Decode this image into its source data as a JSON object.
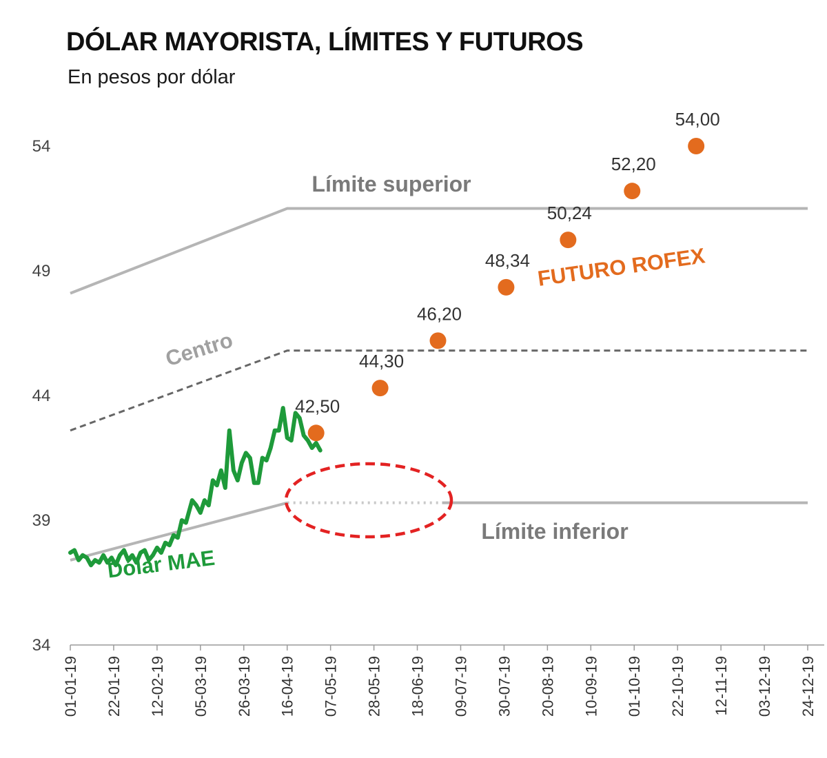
{
  "title": "DÓLAR MAYORISTA, LÍMITES Y FUTUROS",
  "subtitle": "En pesos por dólar",
  "colors": {
    "dolar_mae": "#1e9a3a",
    "futuro_rofex": "#e36b1e",
    "limits": "#b5b5b5",
    "centro": "#666666",
    "highlight_ellipse": "#e32222",
    "axis": "#9a9a9a"
  },
  "chart_data": {
    "type": "line",
    "title": "DÓLAR MAYORISTA, LÍMITES Y FUTUROS",
    "subtitle": "En pesos por dólar",
    "ylim": [
      34,
      54
    ],
    "yticks": [
      34,
      39,
      44,
      49,
      54
    ],
    "xlim": [
      "2019-01-01",
      "2019-12-24"
    ],
    "xticks": [
      "01-01-19",
      "22-01-19",
      "12-02-19",
      "05-03-19",
      "26-03-19",
      "16-04-19",
      "07-05-19",
      "28-05-19",
      "18-06-19",
      "09-07-19",
      "30-07-19",
      "20-08-19",
      "10-09-19",
      "01-10-19",
      "22-10-19",
      "12-11-19",
      "03-12-19",
      "24-12-19"
    ],
    "grid": false,
    "series": [
      {
        "name": "Límite superior",
        "style": "solid",
        "points": [
          [
            "2019-01-01",
            48.1
          ],
          [
            "2019-04-16",
            51.5
          ],
          [
            "2019-12-24",
            51.5
          ]
        ]
      },
      {
        "name": "Centro",
        "style": "dashed",
        "points": [
          [
            "2019-01-01",
            42.6
          ],
          [
            "2019-04-16",
            45.8
          ],
          [
            "2019-12-24",
            45.8
          ]
        ]
      },
      {
        "name": "Límite inferior",
        "style": "solid",
        "note_gap": [
          "2019-04-16",
          "2019-06-30"
        ],
        "points": [
          [
            "2019-01-01",
            37.4
          ],
          [
            "2019-04-16",
            39.7
          ],
          [
            "2019-12-24",
            39.7
          ]
        ]
      },
      {
        "name": "Dólar MAE",
        "style": "solid",
        "points": [
          [
            "2019-01-01",
            37.7
          ],
          [
            "2019-01-03",
            37.8
          ],
          [
            "2019-01-05",
            37.4
          ],
          [
            "2019-01-07",
            37.6
          ],
          [
            "2019-01-09",
            37.5
          ],
          [
            "2019-01-11",
            37.2
          ],
          [
            "2019-01-13",
            37.4
          ],
          [
            "2019-01-15",
            37.3
          ],
          [
            "2019-01-17",
            37.6
          ],
          [
            "2019-01-19",
            37.3
          ],
          [
            "2019-01-21",
            37.5
          ],
          [
            "2019-01-23",
            37.2
          ],
          [
            "2019-01-25",
            37.6
          ],
          [
            "2019-01-27",
            37.8
          ],
          [
            "2019-01-29",
            37.4
          ],
          [
            "2019-01-31",
            37.6
          ],
          [
            "2019-02-02",
            37.3
          ],
          [
            "2019-02-04",
            37.7
          ],
          [
            "2019-02-06",
            37.8
          ],
          [
            "2019-02-08",
            37.4
          ],
          [
            "2019-02-10",
            37.6
          ],
          [
            "2019-02-12",
            37.9
          ],
          [
            "2019-02-14",
            37.7
          ],
          [
            "2019-02-16",
            38.1
          ],
          [
            "2019-02-18",
            38.0
          ],
          [
            "2019-02-20",
            38.4
          ],
          [
            "2019-02-22",
            38.3
          ],
          [
            "2019-02-24",
            39.0
          ],
          [
            "2019-02-26",
            38.9
          ],
          [
            "2019-02-28",
            39.5
          ],
          [
            "2019-03-01",
            39.8
          ],
          [
            "2019-03-03",
            39.6
          ],
          [
            "2019-03-05",
            39.3
          ],
          [
            "2019-03-07",
            39.8
          ],
          [
            "2019-03-09",
            39.6
          ],
          [
            "2019-03-11",
            40.6
          ],
          [
            "2019-03-13",
            40.4
          ],
          [
            "2019-03-15",
            41.0
          ],
          [
            "2019-03-17",
            40.3
          ],
          [
            "2019-03-19",
            42.6
          ],
          [
            "2019-03-21",
            41.0
          ],
          [
            "2019-03-23",
            40.6
          ],
          [
            "2019-03-25",
            41.3
          ],
          [
            "2019-03-27",
            41.7
          ],
          [
            "2019-03-29",
            41.5
          ],
          [
            "2019-03-31",
            40.5
          ],
          [
            "2019-04-02",
            40.5
          ],
          [
            "2019-04-04",
            41.5
          ],
          [
            "2019-04-06",
            41.4
          ],
          [
            "2019-04-08",
            41.9
          ],
          [
            "2019-04-10",
            42.6
          ],
          [
            "2019-04-12",
            42.6
          ],
          [
            "2019-04-14",
            43.5
          ],
          [
            "2019-04-16",
            42.3
          ],
          [
            "2019-04-18",
            42.2
          ],
          [
            "2019-04-20",
            43.3
          ],
          [
            "2019-04-22",
            43.1
          ],
          [
            "2019-04-24",
            42.4
          ],
          [
            "2019-04-26",
            42.2
          ],
          [
            "2019-04-28",
            41.9
          ],
          [
            "2019-04-30",
            42.1
          ],
          [
            "2019-05-02",
            41.8
          ]
        ]
      },
      {
        "name": "Futuro ROFEX",
        "style": "markers",
        "points": [
          [
            "2019-04-30",
            42.5
          ],
          [
            "2019-05-31",
            44.3
          ],
          [
            "2019-06-28",
            46.2
          ],
          [
            "2019-07-31",
            48.34
          ],
          [
            "2019-08-30",
            50.24
          ],
          [
            "2019-09-30",
            52.2
          ],
          [
            "2019-10-31",
            54.0
          ]
        ],
        "labels": [
          "42,50",
          "44,30",
          "46,20",
          "48,34",
          "50,24",
          "52,20",
          "54,00"
        ]
      }
    ],
    "annotations": {
      "limite_superior": "Límite superior",
      "centro": "Centro",
      "limite_inferior": "Límite inferior",
      "dolar_mae": "Dólar MAE",
      "futuro_rofex": "FUTURO ROFEX"
    }
  }
}
